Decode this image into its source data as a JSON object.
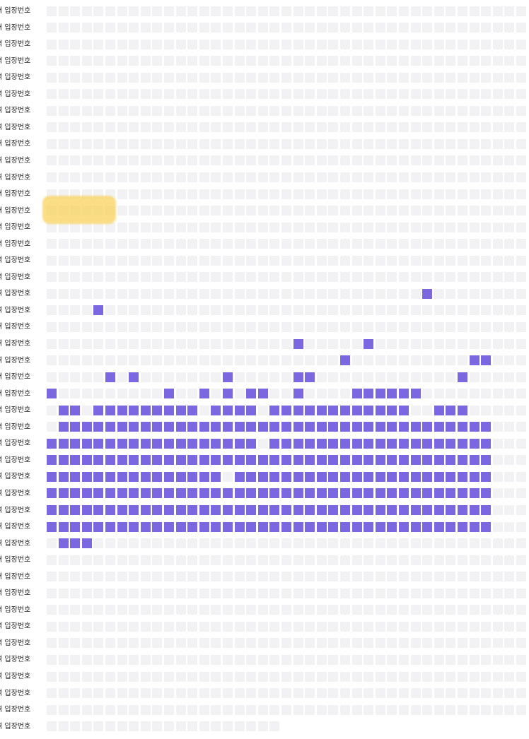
{
  "row_label": "격 입장번호",
  "colors": {
    "empty_seat": "#f2f2f4",
    "filled_seat": "#7b68e0",
    "highlight": "#f9d66b",
    "label_text": "#222222"
  },
  "highlight": {
    "row": 12,
    "col_start": 0,
    "col_end": 5
  },
  "rows": [
    {
      "cells": 41,
      "filled": []
    },
    {
      "cells": 41,
      "filled": []
    },
    {
      "cells": 41,
      "filled": []
    },
    {
      "cells": 41,
      "filled": []
    },
    {
      "cells": 41,
      "filled": []
    },
    {
      "cells": 41,
      "filled": []
    },
    {
      "cells": 41,
      "filled": []
    },
    {
      "cells": 41,
      "filled": []
    },
    {
      "cells": 41,
      "filled": []
    },
    {
      "cells": 41,
      "filled": []
    },
    {
      "cells": 41,
      "filled": []
    },
    {
      "cells": 41,
      "filled": []
    },
    {
      "cells": 41,
      "filled": []
    },
    {
      "cells": 41,
      "filled": []
    },
    {
      "cells": 41,
      "filled": []
    },
    {
      "cells": 41,
      "filled": []
    },
    {
      "cells": 41,
      "filled": []
    },
    {
      "cells": 41,
      "filled": [
        32
      ]
    },
    {
      "cells": 41,
      "filled": [
        4
      ]
    },
    {
      "cells": 41,
      "filled": []
    },
    {
      "cells": 41,
      "filled": [
        21,
        27
      ]
    },
    {
      "cells": 41,
      "filled": [
        25,
        36,
        37
      ]
    },
    {
      "cells": 41,
      "filled": [
        5,
        7,
        15,
        21,
        22,
        35
      ]
    },
    {
      "cells": 41,
      "filled": [
        0,
        10,
        13,
        15,
        17,
        18,
        21,
        26,
        27,
        28,
        29,
        30,
        31
      ]
    },
    {
      "cells": 41,
      "filled": [
        1,
        2,
        4,
        5,
        6,
        7,
        8,
        9,
        10,
        11,
        12,
        14,
        15,
        16,
        17,
        19,
        20,
        21,
        22,
        23,
        24,
        25,
        26,
        27,
        28,
        29,
        30,
        33,
        34,
        35
      ]
    },
    {
      "cells": 41,
      "filled": [
        1,
        2,
        3,
        4,
        5,
        6,
        7,
        8,
        9,
        10,
        11,
        12,
        13,
        14,
        15,
        16,
        17,
        18,
        19,
        20,
        21,
        22,
        23,
        24,
        25,
        26,
        27,
        28,
        29,
        30,
        31,
        32,
        33,
        34,
        35,
        36,
        37
      ]
    },
    {
      "cells": 41,
      "filled": [
        0,
        1,
        2,
        3,
        4,
        5,
        6,
        7,
        8,
        9,
        10,
        11,
        12,
        13,
        14,
        15,
        16,
        17,
        19,
        20,
        21,
        22,
        23,
        24,
        25,
        26,
        27,
        28,
        29,
        30,
        31,
        32,
        33,
        34,
        35,
        36,
        37
      ]
    },
    {
      "cells": 41,
      "filled": [
        0,
        1,
        2,
        3,
        4,
        5,
        6,
        7,
        8,
        9,
        10,
        11,
        12,
        13,
        14,
        15,
        16,
        17,
        18,
        19,
        20,
        21,
        22,
        23,
        24,
        25,
        26,
        27,
        28,
        29,
        30,
        31,
        32,
        33,
        34,
        35,
        36,
        37
      ]
    },
    {
      "cells": 41,
      "filled": [
        0,
        1,
        2,
        3,
        4,
        5,
        6,
        7,
        8,
        9,
        10,
        11,
        12,
        13,
        14,
        16,
        17,
        18,
        19,
        20,
        21,
        22,
        23,
        24,
        25,
        26,
        27,
        28,
        29,
        30,
        31,
        32,
        33,
        34,
        35,
        36,
        37
      ]
    },
    {
      "cells": 41,
      "filled": [
        0,
        1,
        2,
        3,
        4,
        5,
        6,
        7,
        8,
        9,
        10,
        11,
        12,
        13,
        14,
        15,
        16,
        17,
        18,
        19,
        20,
        21,
        22,
        23,
        24,
        25,
        26,
        27,
        28,
        29,
        30,
        31,
        32,
        33,
        34,
        35,
        36,
        37
      ]
    },
    {
      "cells": 41,
      "filled": [
        0,
        1,
        2,
        3,
        4,
        5,
        6,
        7,
        8,
        9,
        10,
        11,
        12,
        13,
        14,
        15,
        16,
        17,
        18,
        19,
        20,
        21,
        22,
        23,
        24,
        25,
        26,
        27,
        28,
        29,
        30,
        31,
        32,
        33,
        34,
        35,
        36,
        37
      ]
    },
    {
      "cells": 41,
      "filled": [
        0,
        1,
        2,
        3,
        4,
        5,
        6,
        7,
        8,
        9,
        10,
        11,
        12,
        13,
        14,
        15,
        16,
        17,
        18,
        19,
        20,
        21,
        22,
        23,
        24,
        25,
        26,
        27,
        28,
        29,
        30,
        31,
        32,
        33,
        34,
        35,
        36,
        37
      ]
    },
    {
      "cells": 41,
      "filled": [
        1,
        2,
        3
      ]
    },
    {
      "cells": 41,
      "filled": []
    },
    {
      "cells": 41,
      "filled": []
    },
    {
      "cells": 41,
      "filled": []
    },
    {
      "cells": 41,
      "filled": []
    },
    {
      "cells": 41,
      "filled": []
    },
    {
      "cells": 41,
      "filled": []
    },
    {
      "cells": 41,
      "filled": []
    },
    {
      "cells": 41,
      "filled": []
    },
    {
      "cells": 41,
      "filled": []
    },
    {
      "cells": 41,
      "filled": []
    },
    {
      "cells": 20,
      "filled": []
    }
  ]
}
